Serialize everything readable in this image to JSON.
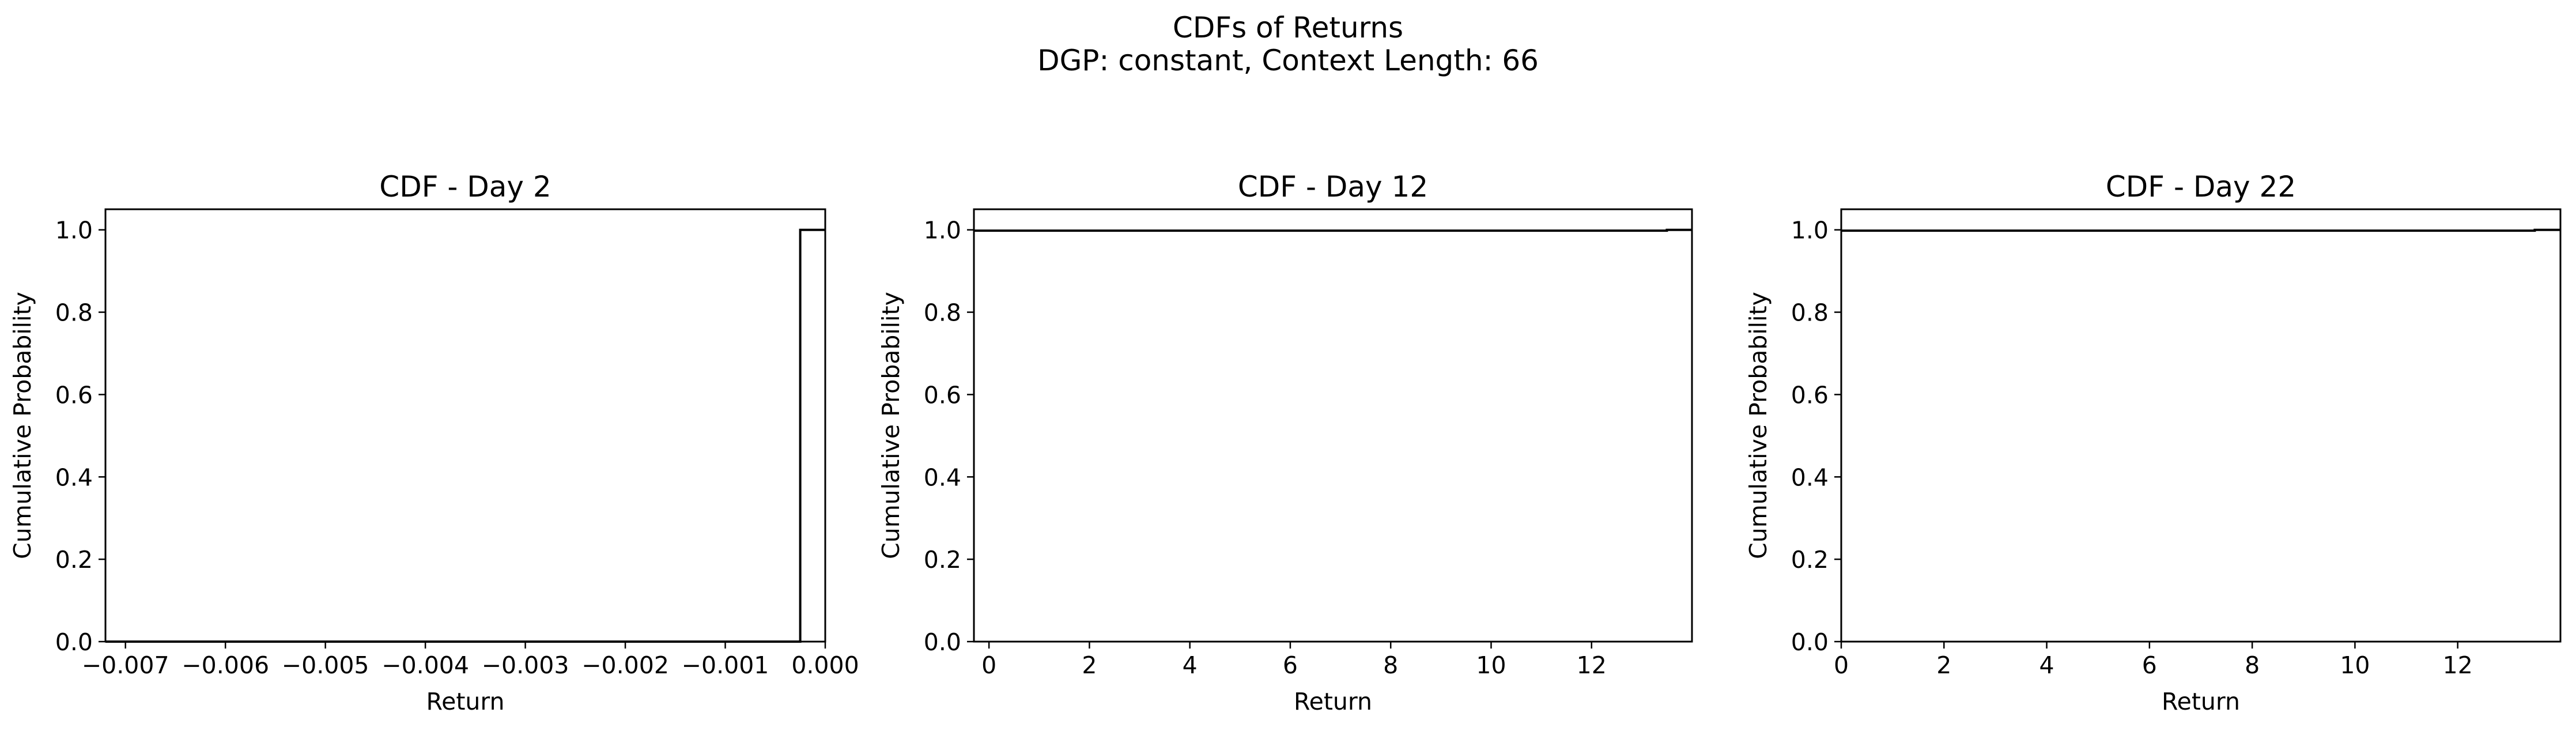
{
  "figure": {
    "title_line1": "CDFs of Returns",
    "title_line2": "DGP: constant, Context Length: 66"
  },
  "chart_data": [
    {
      "type": "line",
      "title": "CDF - Day 2",
      "xlabel": "Return",
      "ylabel": "Cumulative Probability",
      "xlim": [
        -0.0072,
        0.0
      ],
      "ylim": [
        0.0,
        1.05
      ],
      "xticks": [
        -0.007,
        -0.006,
        -0.005,
        -0.004,
        -0.003,
        -0.002,
        -0.001,
        0.0
      ],
      "xtick_labels": [
        "−0.007",
        "−0.006",
        "−0.005",
        "−0.004",
        "−0.003",
        "−0.002",
        "−0.001",
        "0.000"
      ],
      "yticks": [
        0.0,
        0.2,
        0.4,
        0.6,
        0.8,
        1.0
      ],
      "ytick_labels": [
        "0.0",
        "0.2",
        "0.4",
        "0.6",
        "0.8",
        "1.0"
      ],
      "grid": false,
      "series": [
        {
          "x": [
            -0.0072,
            -0.00025,
            -0.00025,
            0.0
          ],
          "y": [
            0.0,
            0.0,
            1.0,
            1.0
          ],
          "color": "#000000"
        }
      ]
    },
    {
      "type": "line",
      "title": "CDF - Day 12",
      "xlabel": "Return",
      "ylabel": "Cumulative Probability",
      "xlim": [
        -0.3,
        14.0
      ],
      "ylim": [
        0.0,
        1.05
      ],
      "xticks": [
        0,
        2,
        4,
        6,
        8,
        10,
        12
      ],
      "xtick_labels": [
        "0",
        "2",
        "4",
        "6",
        "8",
        "10",
        "12"
      ],
      "yticks": [
        0.0,
        0.2,
        0.4,
        0.6,
        0.8,
        1.0
      ],
      "ytick_labels": [
        "0.0",
        "0.2",
        "0.4",
        "0.6",
        "0.8",
        "1.0"
      ],
      "grid": false,
      "series": [
        {
          "x": [
            -0.3,
            13.5,
            13.5,
            14.0
          ],
          "y": [
            0.998,
            0.998,
            1.0,
            1.0
          ],
          "color": "#000000"
        }
      ]
    },
    {
      "type": "line",
      "title": "CDF - Day 22",
      "xlabel": "Return",
      "ylabel": "Cumulative Probability",
      "xlim": [
        0.0,
        14.0
      ],
      "ylim": [
        0.0,
        1.05
      ],
      "xticks": [
        0,
        2,
        4,
        6,
        8,
        10,
        12
      ],
      "xtick_labels": [
        "0",
        "2",
        "4",
        "6",
        "8",
        "10",
        "12"
      ],
      "yticks": [
        0.0,
        0.2,
        0.4,
        0.6,
        0.8,
        1.0
      ],
      "ytick_labels": [
        "0.0",
        "0.2",
        "0.4",
        "0.6",
        "0.8",
        "1.0"
      ],
      "grid": false,
      "series": [
        {
          "x": [
            0.0,
            13.5,
            13.5,
            14.0
          ],
          "y": [
            0.998,
            0.998,
            1.0,
            1.0
          ],
          "color": "#000000"
        }
      ]
    }
  ]
}
